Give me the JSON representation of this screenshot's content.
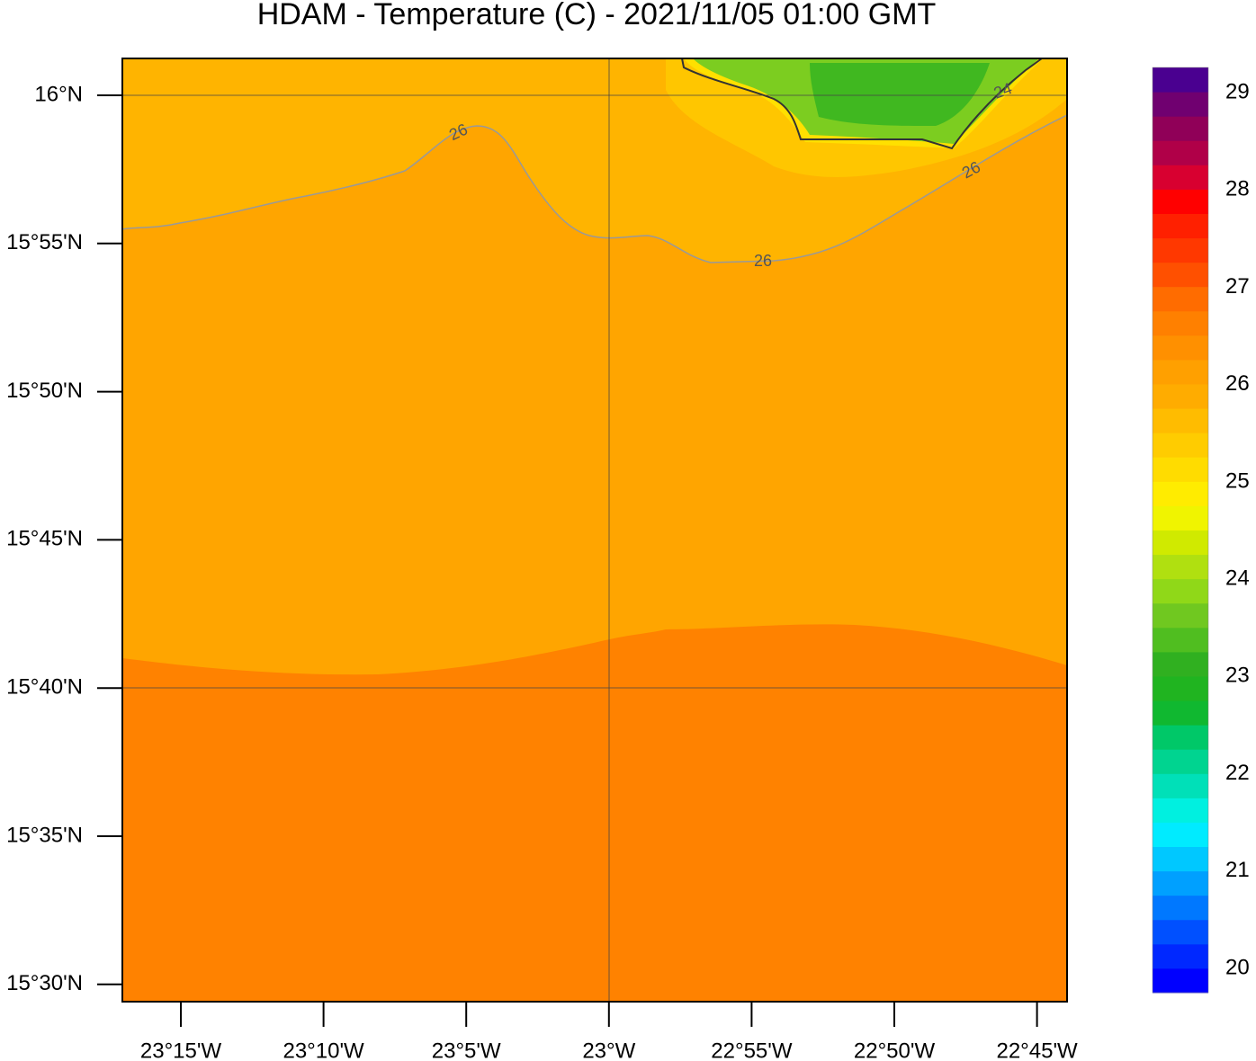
{
  "title": "HDAM - Temperature (C)  -  2021/11/05  01:00 GMT",
  "y_axis": {
    "tick_labels": [
      "16°N",
      "15°55'N",
      "15°50'N",
      "15°45'N",
      "15°40'N",
      "15°35'N",
      "15°30'N"
    ]
  },
  "x_axis": {
    "tick_labels": [
      "23°15'W",
      "23°10'W",
      "23°5'W",
      "23°W",
      "22°55'W",
      "22°50'W",
      "22°45'W"
    ]
  },
  "contour_labels": [
    "26",
    "26",
    "26",
    "24"
  ],
  "colorbar": {
    "labels": [
      "20",
      "21",
      "22",
      "23",
      "24",
      "25",
      "26",
      "27",
      "28",
      "29"
    ],
    "colors": [
      "#0000ff",
      "#0028ff",
      "#0050ff",
      "#0078ff",
      "#00a0ff",
      "#00c8ff",
      "#00ebff",
      "#00f0e0",
      "#00e0b8",
      "#00d490",
      "#00c868",
      "#10b830",
      "#20b420",
      "#30b020",
      "#50be20",
      "#70c820",
      "#90d818",
      "#b0e010",
      "#d0ea00",
      "#f0f400",
      "#ffec00",
      "#ffdc00",
      "#ffcc00",
      "#ffbc00",
      "#ffac00",
      "#ffa000",
      "#ff9000",
      "#ff8000",
      "#ff6c00",
      "#ff5000",
      "#ff3800",
      "#ff2000",
      "#ff0000",
      "#d80030",
      "#b00048",
      "#900058",
      "#700070",
      "#4a0090"
    ]
  }
}
